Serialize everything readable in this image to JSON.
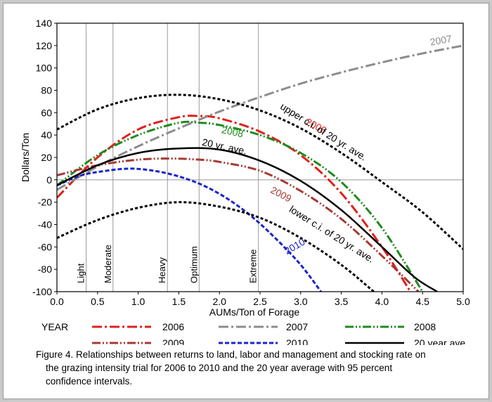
{
  "chart_data": {
    "type": "line",
    "title": "",
    "xlabel": "AUMs/Ton of Forage",
    "ylabel": "Dollars/Ton",
    "xlim": [
      0.0,
      5.0
    ],
    "ylim": [
      -100,
      140
    ],
    "xticks": [
      "0.0",
      "0.5",
      "1.0",
      "1.5",
      "2.0",
      "2.5",
      "3.0",
      "3.5",
      "4.0",
      "4.5",
      "5.0"
    ],
    "yticks": [
      "140",
      "120",
      "100",
      "80",
      "60",
      "40",
      "20",
      "0",
      "-20",
      "-40",
      "-60",
      "-80",
      "-100"
    ],
    "grid": false,
    "intensity_lines": [
      {
        "label": "Light",
        "x": 0.36
      },
      {
        "label": "Moderate",
        "x": 0.69
      },
      {
        "label": "Heavy",
        "x": 1.36
      },
      {
        "label": "Optimum",
        "x": 1.75
      },
      {
        "label": "Extreme",
        "x": 2.48
      }
    ],
    "series": [
      {
        "name": "2006",
        "color": "#e0201c",
        "dash": "dashdot",
        "inline_label": "2006",
        "x": [
          0.0,
          0.5,
          1.0,
          1.5,
          1.75,
          2.0,
          2.5,
          3.0,
          3.5,
          4.0,
          4.35
        ],
        "y": [
          -16,
          20,
          45,
          56,
          57,
          55,
          43,
          22,
          -12,
          -60,
          -100
        ]
      },
      {
        "name": "2007",
        "color": "#8c8c8c",
        "dash": "dashdot",
        "inline_label": "2007",
        "x": [
          0.0,
          0.5,
          1.0,
          1.5,
          2.0,
          2.5,
          3.0,
          3.5,
          4.0,
          4.5,
          5.0
        ],
        "y": [
          -9,
          12,
          30,
          46,
          61,
          74,
          86,
          96,
          105,
          113,
          120
        ]
      },
      {
        "name": "2008",
        "color": "#1e8a1e",
        "dash": "dashdotdot",
        "inline_label": "2008",
        "x": [
          0.0,
          0.5,
          1.0,
          1.5,
          1.75,
          2.0,
          2.5,
          3.0,
          3.5,
          4.0,
          4.5
        ],
        "y": [
          -5,
          22,
          40,
          51,
          51,
          49,
          40,
          24,
          -2,
          -43,
          -100
        ]
      },
      {
        "name": "2009",
        "color": "#a53a34",
        "dash": "dashdotdot",
        "inline_label": "2009",
        "x": [
          0.0,
          0.5,
          1.0,
          1.4,
          1.75,
          2.0,
          2.5,
          3.0,
          3.5,
          4.0,
          4.45
        ],
        "y": [
          4,
          13,
          18,
          19,
          18,
          16,
          8,
          -10,
          -35,
          -68,
          -100
        ]
      },
      {
        "name": "2010",
        "color": "#1c24c8",
        "dash": "dashed",
        "inline_label": "2010",
        "x": [
          0.0,
          0.3,
          0.6,
          0.9,
          1.2,
          1.5,
          1.8,
          2.1,
          2.4,
          2.7,
          3.0,
          3.25
        ],
        "y": [
          -5,
          4,
          8,
          10,
          8,
          3,
          -5,
          -17,
          -33,
          -53,
          -76,
          -100
        ]
      },
      {
        "name": "20 year ave.",
        "color": "#000000",
        "dash": "solid",
        "inline_label": "20 yr. ave.",
        "x": [
          0.0,
          0.5,
          1.0,
          1.5,
          2.0,
          2.5,
          3.0,
          3.5,
          4.0,
          4.4,
          4.68
        ],
        "y": [
          -5,
          13,
          24,
          28,
          27,
          17,
          -1,
          -27,
          -60,
          -87,
          -100
        ]
      },
      {
        "name": "upper c.i. of 20 yr. ave.",
        "color": "#000000",
        "dash": "dotted",
        "inline_label": "upper c.i. of 20 yr. ave.",
        "x": [
          0.0,
          0.5,
          1.0,
          1.5,
          2.0,
          2.5,
          3.0,
          3.5,
          4.0,
          4.5,
          5.0
        ],
        "y": [
          45,
          63,
          73,
          76,
          72,
          62,
          46,
          24,
          -2,
          -29,
          -62
        ]
      },
      {
        "name": "lower c.i. of 20 yr. ave.",
        "color": "#000000",
        "dash": "dotted",
        "inline_label": "lower c.i. of 20 yr. ave.",
        "x": [
          0.0,
          0.5,
          1.0,
          1.5,
          2.0,
          2.5,
          3.0,
          3.5,
          3.9
        ],
        "y": [
          -52,
          -36,
          -25,
          -20,
          -24,
          -34,
          -52,
          -76,
          -100
        ]
      }
    ],
    "legend": {
      "title": "YEAR",
      "placement": "bottom",
      "entries": [
        {
          "label": "2006",
          "series": "2006"
        },
        {
          "label": "2007",
          "series": "2007"
        },
        {
          "label": "2008",
          "series": "2008"
        },
        {
          "label": "2009",
          "series": "2009"
        },
        {
          "label": "2010",
          "series": "2010"
        },
        {
          "label": "20 year ave.",
          "series": "20 year ave."
        }
      ]
    }
  },
  "caption": {
    "line1": "Figure 4. Relationships between returns to land, labor and management and stocking rate on",
    "line2": "the grazing intensity trial for 2006 to 2010 and the 20 year average with 95 percent",
    "line3": "confidence intervals."
  }
}
